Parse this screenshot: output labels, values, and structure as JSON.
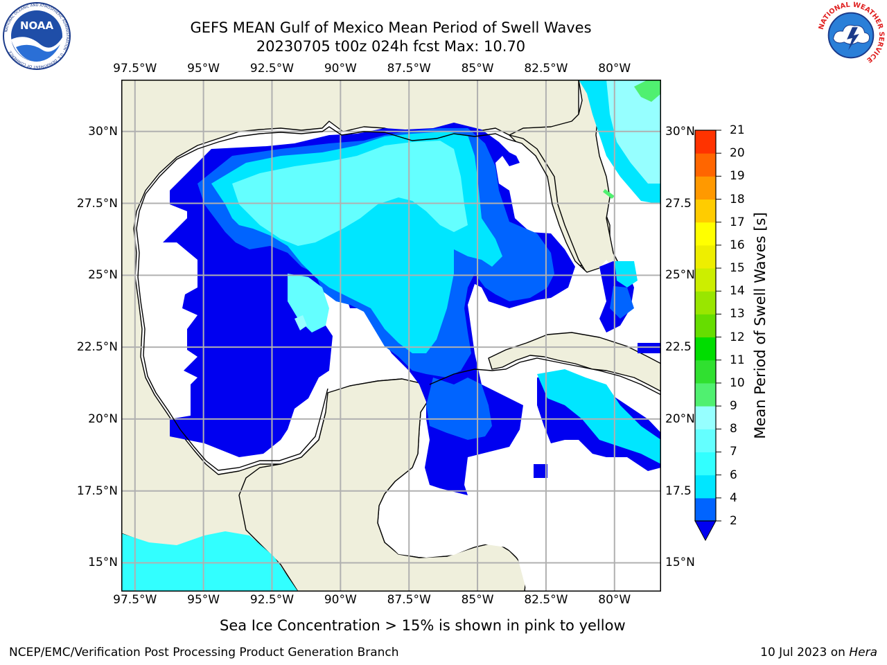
{
  "header": {
    "title_line1": "GEFS MEAN Gulf of Mexico Mean Period of Swell Waves",
    "title_line2": "20230705 t00z 024h fcst   Max: 10.70"
  },
  "logos": {
    "noaa_text": "NOAA",
    "noaa_ring_text": "NATIONAL OCEANIC AND ATMOSPHERIC ADMINISTRATION · U.S. DEPARTMENT OF COMMERCE",
    "nws_ring_text": "NATIONAL WEATHER SERVICE"
  },
  "map": {
    "longitude_labels": [
      "97.5°W",
      "95°W",
      "92.5°W",
      "90°W",
      "87.5°W",
      "85°W",
      "82.5°W",
      "80°W"
    ],
    "latitude_labels_left": [
      "30°N",
      "27.5°N",
      "25°N",
      "22.5°N",
      "20°N",
      "17.5°N",
      "15°N"
    ],
    "latitude_labels_right": [
      "30°N",
      "27.5",
      "25°N",
      "22.5",
      "20°N",
      "17.5",
      "15°N"
    ],
    "lon_range": [
      -98,
      -78.3
    ],
    "lat_range": [
      14,
      31.8
    ],
    "land_color": "#efefdc",
    "grid_color": "#b0b0b0"
  },
  "colorbar": {
    "title": "Mean Period of Swell Waves [s]",
    "tick_labels": [
      "21",
      "20",
      "19",
      "18",
      "17",
      "16",
      "15",
      "14",
      "13",
      "12",
      "11",
      "10",
      "9",
      "8",
      "7",
      "6",
      "4",
      "2"
    ],
    "levels": [
      2,
      4,
      6,
      7,
      8,
      9,
      10,
      11,
      12,
      13,
      14,
      15,
      16,
      17,
      18,
      19,
      20,
      21
    ],
    "colors": [
      "#0064ff",
      "#00e6ff",
      "#32ffff",
      "#64ffff",
      "#96ffff",
      "#50f070",
      "#30e030",
      "#00dd00",
      "#66dd00",
      "#99e600",
      "#ccee00",
      "#eeee00",
      "#ffff00",
      "#ffcc00",
      "#ff9900",
      "#ff6600",
      "#ff3300",
      "#ff0000"
    ],
    "under_color": "#0000f0"
  },
  "footer": {
    "note": "Sea Ice Concentration > 15% is shown in pink to yellow",
    "credit": "NCEP/EMC/Verification Post Processing Product Generation Branch",
    "date": "10 Jul 2023 on ",
    "machine": "Hera"
  }
}
